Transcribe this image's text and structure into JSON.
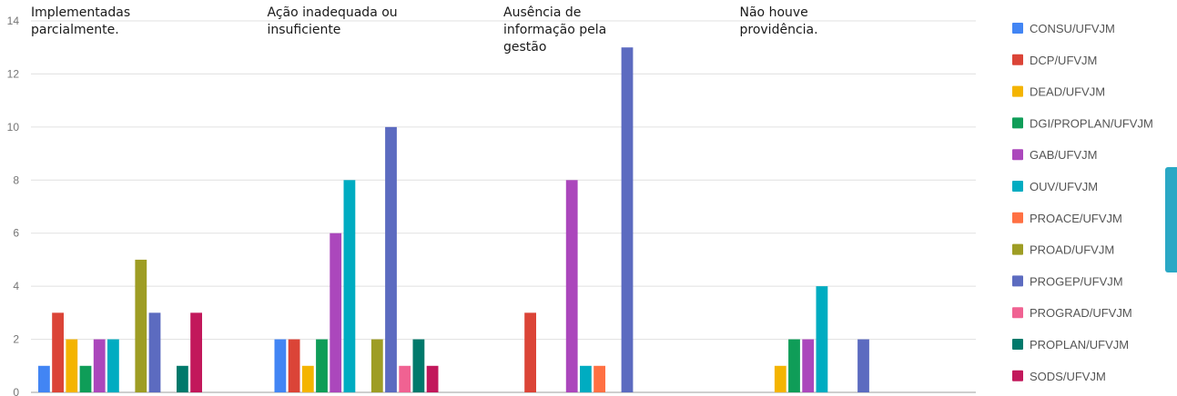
{
  "chart_data": {
    "type": "bar",
    "categories": [
      "Implementadas parcialmente.",
      "Ação inadequada ou insuficiente",
      "Ausência de informação pela gestão",
      "Não houve providência."
    ],
    "category_lines": [
      [
        "Implementadas",
        "parcialmente."
      ],
      [
        "Ação inadequada ou",
        "insuficiente"
      ],
      [
        "Ausência de",
        "informação pela",
        "gestão"
      ],
      [
        "Não houve",
        "providência."
      ]
    ],
    "series": [
      {
        "name": "CONSU/UFVJM",
        "color": "#4285f4",
        "values": [
          1,
          2,
          0,
          0
        ]
      },
      {
        "name": "DCP/UFVJM",
        "color": "#db4437",
        "values": [
          3,
          2,
          3,
          0
        ]
      },
      {
        "name": "DEAD/UFVJM",
        "color": "#f4b400",
        "values": [
          2,
          1,
          0,
          1
        ]
      },
      {
        "name": "DGI/PROPLAN/UFVJM",
        "color": "#0f9d58",
        "values": [
          1,
          2,
          0,
          2
        ]
      },
      {
        "name": "GAB/UFVJM",
        "color": "#ab47bc",
        "values": [
          2,
          6,
          8,
          2
        ]
      },
      {
        "name": "OUV/UFVJM",
        "color": "#00acc1",
        "values": [
          2,
          8,
          1,
          4
        ]
      },
      {
        "name": "PROACE/UFVJM",
        "color": "#ff7043",
        "values": [
          0,
          0,
          1,
          0
        ]
      },
      {
        "name": "PROAD/UFVJM",
        "color": "#9e9d24",
        "values": [
          5,
          2,
          0,
          0
        ]
      },
      {
        "name": "PROGEP/UFVJM",
        "color": "#5c6bc0",
        "values": [
          3,
          10,
          13,
          2
        ]
      },
      {
        "name": "PROGRAD/UFVJM",
        "color": "#f06292",
        "values": [
          0,
          1,
          0,
          0
        ]
      },
      {
        "name": "PROPLAN/UFVJM",
        "color": "#00796b",
        "values": [
          1,
          2,
          0,
          0
        ]
      },
      {
        "name": "SODS/UFVJM",
        "color": "#c2185b",
        "values": [
          3,
          1,
          0,
          0
        ]
      }
    ],
    "ylim": [
      0,
      14
    ],
    "yticks": [
      0,
      2,
      4,
      6,
      8,
      10,
      12,
      14
    ],
    "grid": true,
    "legend_position": "right"
  }
}
